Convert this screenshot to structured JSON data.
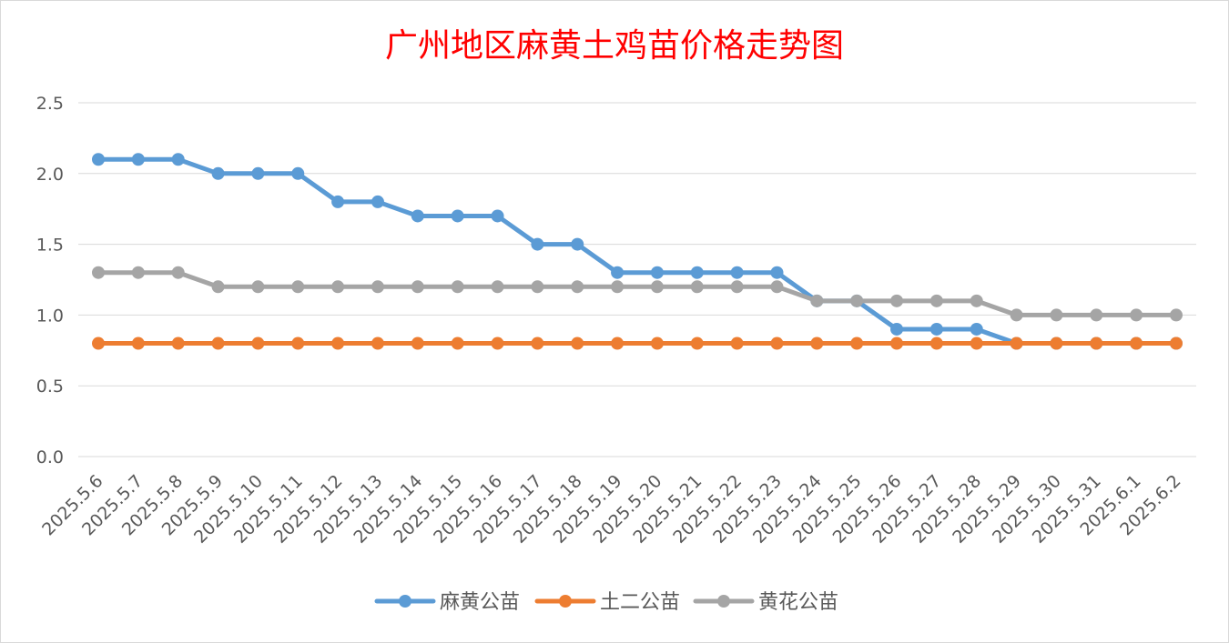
{
  "chart_data": {
    "type": "line",
    "title": "广州地区麻黄土鸡苗价格走势图",
    "xlabel": "",
    "ylabel": "",
    "ylim": [
      0,
      2.5
    ],
    "yticks": [
      "0.0",
      "0.5",
      "1.0",
      "1.5",
      "2.0",
      "2.5"
    ],
    "grid": true,
    "legend_position": "bottom",
    "categories": [
      "2025.5.6",
      "2025.5.7",
      "2025.5.8",
      "2025.5.9",
      "2025.5.10",
      "2025.5.11",
      "2025.5.12",
      "2025.5.13",
      "2025.5.14",
      "2025.5.15",
      "2025.5.16",
      "2025.5.17",
      "2025.5.18",
      "2025.5.19",
      "2025.5.20",
      "2025.5.21",
      "2025.5.22",
      "2025.5.23",
      "2025.5.24",
      "2025.5.25",
      "2025.5.26",
      "2025.5.27",
      "2025.5.28",
      "2025.5.29",
      "2025.5.30",
      "2025.5.31",
      "2025.6.1",
      "2025.6.2"
    ],
    "series": [
      {
        "name": "麻黄公苗",
        "color": "#5b9bd5",
        "values": [
          2.1,
          2.1,
          2.1,
          2.0,
          2.0,
          2.0,
          1.8,
          1.8,
          1.7,
          1.7,
          1.7,
          1.5,
          1.5,
          1.3,
          1.3,
          1.3,
          1.3,
          1.3,
          1.1,
          1.1,
          0.9,
          0.9,
          0.9,
          0.8,
          0.8,
          0.8,
          0.8,
          0.8
        ]
      },
      {
        "name": "土二公苗",
        "color": "#ed7d31",
        "values": [
          0.8,
          0.8,
          0.8,
          0.8,
          0.8,
          0.8,
          0.8,
          0.8,
          0.8,
          0.8,
          0.8,
          0.8,
          0.8,
          0.8,
          0.8,
          0.8,
          0.8,
          0.8,
          0.8,
          0.8,
          0.8,
          0.8,
          0.8,
          0.8,
          0.8,
          0.8,
          0.8,
          0.8
        ]
      },
      {
        "name": "黄花公苗",
        "color": "#a5a5a5",
        "values": [
          1.3,
          1.3,
          1.3,
          1.2,
          1.2,
          1.2,
          1.2,
          1.2,
          1.2,
          1.2,
          1.2,
          1.2,
          1.2,
          1.2,
          1.2,
          1.2,
          1.2,
          1.2,
          1.1,
          1.1,
          1.1,
          1.1,
          1.1,
          1.0,
          1.0,
          1.0,
          1.0,
          1.0
        ]
      }
    ]
  }
}
